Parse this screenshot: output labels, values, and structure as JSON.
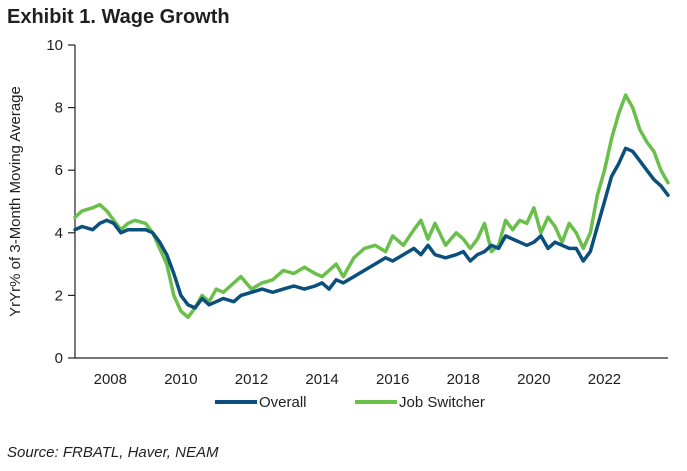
{
  "title": "Exhibit 1. Wage Growth",
  "source": "Source: FRBATL, Haver, NEAM",
  "chart_data": {
    "type": "line",
    "title": "Exhibit 1. Wage Growth",
    "xlabel": "",
    "ylabel": "YrYr% of 3-Month Moving Average",
    "xlim": [
      2007.0,
      2023.8
    ],
    "ylim": [
      0,
      10
    ],
    "x_ticks": [
      2008,
      2010,
      2012,
      2014,
      2016,
      2018,
      2020,
      2022
    ],
    "y_ticks": [
      0,
      2,
      4,
      6,
      8,
      10
    ],
    "legend_position": "bottom-center",
    "series": [
      {
        "name": "Overall",
        "color": "#0b4f7c",
        "points": [
          [
            2007.0,
            4.1
          ],
          [
            2007.2,
            4.2
          ],
          [
            2007.5,
            4.1
          ],
          [
            2007.7,
            4.3
          ],
          [
            2007.9,
            4.4
          ],
          [
            2008.1,
            4.3
          ],
          [
            2008.3,
            4.0
          ],
          [
            2008.5,
            4.1
          ],
          [
            2008.7,
            4.1
          ],
          [
            2009.0,
            4.1
          ],
          [
            2009.2,
            4.0
          ],
          [
            2009.4,
            3.7
          ],
          [
            2009.6,
            3.3
          ],
          [
            2009.8,
            2.7
          ],
          [
            2010.0,
            2.0
          ],
          [
            2010.2,
            1.7
          ],
          [
            2010.4,
            1.6
          ],
          [
            2010.6,
            1.9
          ],
          [
            2010.8,
            1.7
          ],
          [
            2011.0,
            1.8
          ],
          [
            2011.2,
            1.9
          ],
          [
            2011.5,
            1.8
          ],
          [
            2011.7,
            2.0
          ],
          [
            2012.0,
            2.1
          ],
          [
            2012.3,
            2.2
          ],
          [
            2012.6,
            2.1
          ],
          [
            2012.9,
            2.2
          ],
          [
            2013.2,
            2.3
          ],
          [
            2013.5,
            2.2
          ],
          [
            2013.8,
            2.3
          ],
          [
            2014.0,
            2.4
          ],
          [
            2014.2,
            2.2
          ],
          [
            2014.4,
            2.5
          ],
          [
            2014.6,
            2.4
          ],
          [
            2014.9,
            2.6
          ],
          [
            2015.2,
            2.8
          ],
          [
            2015.5,
            3.0
          ],
          [
            2015.8,
            3.2
          ],
          [
            2016.0,
            3.1
          ],
          [
            2016.3,
            3.3
          ],
          [
            2016.6,
            3.5
          ],
          [
            2016.8,
            3.3
          ],
          [
            2017.0,
            3.6
          ],
          [
            2017.2,
            3.3
          ],
          [
            2017.5,
            3.2
          ],
          [
            2017.8,
            3.3
          ],
          [
            2018.0,
            3.4
          ],
          [
            2018.2,
            3.1
          ],
          [
            2018.4,
            3.3
          ],
          [
            2018.6,
            3.4
          ],
          [
            2018.8,
            3.6
          ],
          [
            2019.0,
            3.5
          ],
          [
            2019.2,
            3.9
          ],
          [
            2019.4,
            3.8
          ],
          [
            2019.6,
            3.7
          ],
          [
            2019.8,
            3.6
          ],
          [
            2020.0,
            3.7
          ],
          [
            2020.2,
            3.9
          ],
          [
            2020.4,
            3.5
          ],
          [
            2020.6,
            3.7
          ],
          [
            2020.8,
            3.6
          ],
          [
            2021.0,
            3.5
          ],
          [
            2021.2,
            3.5
          ],
          [
            2021.4,
            3.1
          ],
          [
            2021.6,
            3.4
          ],
          [
            2021.8,
            4.2
          ],
          [
            2022.0,
            5.0
          ],
          [
            2022.2,
            5.8
          ],
          [
            2022.4,
            6.2
          ],
          [
            2022.6,
            6.7
          ],
          [
            2022.8,
            6.6
          ],
          [
            2023.0,
            6.3
          ],
          [
            2023.2,
            6.0
          ],
          [
            2023.4,
            5.7
          ],
          [
            2023.6,
            5.5
          ],
          [
            2023.8,
            5.2
          ]
        ]
      },
      {
        "name": "Job Switcher",
        "color": "#6abf4b",
        "points": [
          [
            2007.0,
            4.5
          ],
          [
            2007.2,
            4.7
          ],
          [
            2007.5,
            4.8
          ],
          [
            2007.7,
            4.9
          ],
          [
            2007.9,
            4.7
          ],
          [
            2008.1,
            4.4
          ],
          [
            2008.3,
            4.1
          ],
          [
            2008.5,
            4.3
          ],
          [
            2008.7,
            4.4
          ],
          [
            2009.0,
            4.3
          ],
          [
            2009.2,
            4.0
          ],
          [
            2009.4,
            3.5
          ],
          [
            2009.6,
            3.0
          ],
          [
            2009.8,
            2.0
          ],
          [
            2010.0,
            1.5
          ],
          [
            2010.2,
            1.3
          ],
          [
            2010.4,
            1.6
          ],
          [
            2010.6,
            2.0
          ],
          [
            2010.8,
            1.8
          ],
          [
            2011.0,
            2.2
          ],
          [
            2011.2,
            2.1
          ],
          [
            2011.5,
            2.4
          ],
          [
            2011.7,
            2.6
          ],
          [
            2012.0,
            2.2
          ],
          [
            2012.3,
            2.4
          ],
          [
            2012.6,
            2.5
          ],
          [
            2012.9,
            2.8
          ],
          [
            2013.2,
            2.7
          ],
          [
            2013.5,
            2.9
          ],
          [
            2013.8,
            2.7
          ],
          [
            2014.0,
            2.6
          ],
          [
            2014.2,
            2.8
          ],
          [
            2014.4,
            3.0
          ],
          [
            2014.6,
            2.6
          ],
          [
            2014.9,
            3.2
          ],
          [
            2015.2,
            3.5
          ],
          [
            2015.5,
            3.6
          ],
          [
            2015.8,
            3.4
          ],
          [
            2016.0,
            3.9
          ],
          [
            2016.3,
            3.6
          ],
          [
            2016.6,
            4.1
          ],
          [
            2016.8,
            4.4
          ],
          [
            2017.0,
            3.8
          ],
          [
            2017.2,
            4.3
          ],
          [
            2017.5,
            3.6
          ],
          [
            2017.8,
            4.0
          ],
          [
            2018.0,
            3.8
          ],
          [
            2018.2,
            3.5
          ],
          [
            2018.4,
            3.8
          ],
          [
            2018.6,
            4.3
          ],
          [
            2018.8,
            3.4
          ],
          [
            2019.0,
            3.6
          ],
          [
            2019.2,
            4.4
          ],
          [
            2019.4,
            4.1
          ],
          [
            2019.6,
            4.4
          ],
          [
            2019.8,
            4.3
          ],
          [
            2020.0,
            4.8
          ],
          [
            2020.2,
            4.0
          ],
          [
            2020.4,
            4.5
          ],
          [
            2020.6,
            4.2
          ],
          [
            2020.8,
            3.7
          ],
          [
            2021.0,
            4.3
          ],
          [
            2021.2,
            4.0
          ],
          [
            2021.4,
            3.5
          ],
          [
            2021.6,
            4.0
          ],
          [
            2021.8,
            5.2
          ],
          [
            2022.0,
            6.0
          ],
          [
            2022.2,
            7.0
          ],
          [
            2022.4,
            7.8
          ],
          [
            2022.6,
            8.4
          ],
          [
            2022.8,
            8.0
          ],
          [
            2023.0,
            7.3
          ],
          [
            2023.2,
            6.9
          ],
          [
            2023.4,
            6.6
          ],
          [
            2023.6,
            6.0
          ],
          [
            2023.8,
            5.6
          ]
        ]
      }
    ]
  }
}
